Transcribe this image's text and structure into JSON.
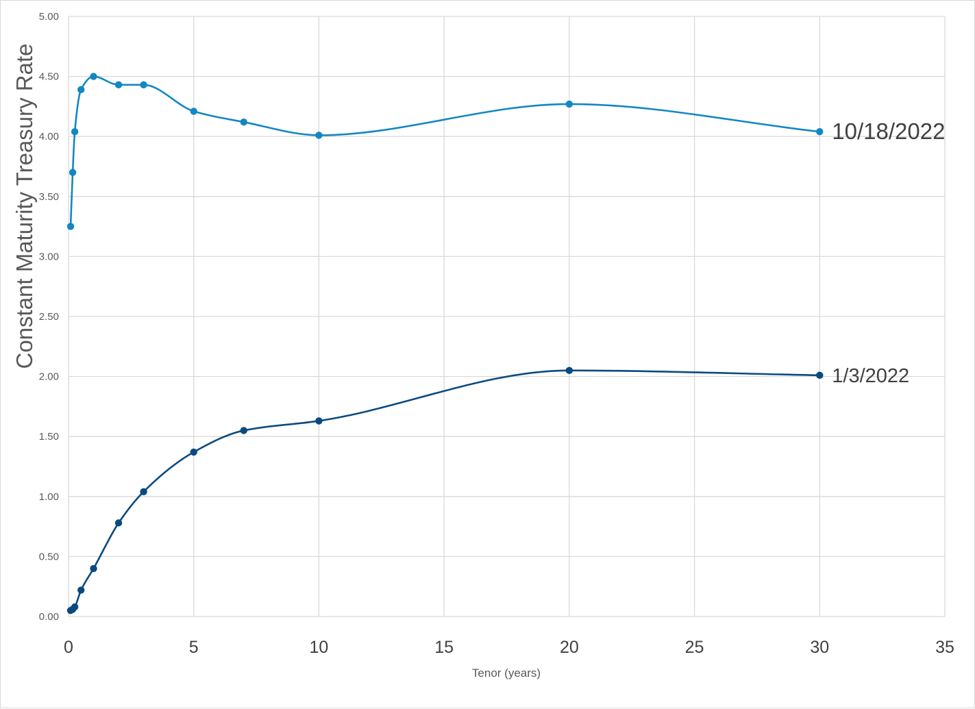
{
  "chart_data": {
    "type": "line",
    "title": "",
    "xlabel": "Tenor (years)",
    "ylabel": "Constant Maturity Treasury Rate",
    "xlim": [
      0,
      35
    ],
    "ylim": [
      0,
      5
    ],
    "x_ticks": [
      0,
      5,
      10,
      15,
      20,
      25,
      30,
      35
    ],
    "x_tick_labels": [
      "0",
      "5",
      "10",
      "15",
      "20",
      "25",
      "30",
      "35"
    ],
    "y_ticks": [
      0,
      0.5,
      1,
      1.5,
      2,
      2.5,
      3,
      3.5,
      4,
      4.5,
      5
    ],
    "y_tick_labels": [
      "0.00",
      "0.50",
      "1.00",
      "1.50",
      "2.00",
      "2.50",
      "3.00",
      "3.50",
      "4.00",
      "4.50",
      "5.00"
    ],
    "grid": true,
    "legend": "inline labels at right end of each series",
    "smooth": true,
    "series": [
      {
        "name": "10/18/2022",
        "color": "#1287c2",
        "x": [
          0.083,
          0.167,
          0.25,
          0.5,
          1,
          2,
          3,
          5,
          7,
          10,
          20,
          30
        ],
        "y": [
          3.25,
          3.7,
          4.04,
          4.39,
          4.5,
          4.43,
          4.43,
          4.21,
          4.12,
          4.01,
          4.27,
          4.04
        ]
      },
      {
        "name": "1/3/2022",
        "color": "#0b4a80",
        "x": [
          0.083,
          0.167,
          0.25,
          0.5,
          1,
          2,
          3,
          5,
          7,
          10,
          20,
          30
        ],
        "y": [
          0.05,
          0.06,
          0.08,
          0.22,
          0.4,
          0.78,
          1.04,
          1.37,
          1.55,
          1.63,
          2.05,
          2.01
        ]
      }
    ]
  }
}
